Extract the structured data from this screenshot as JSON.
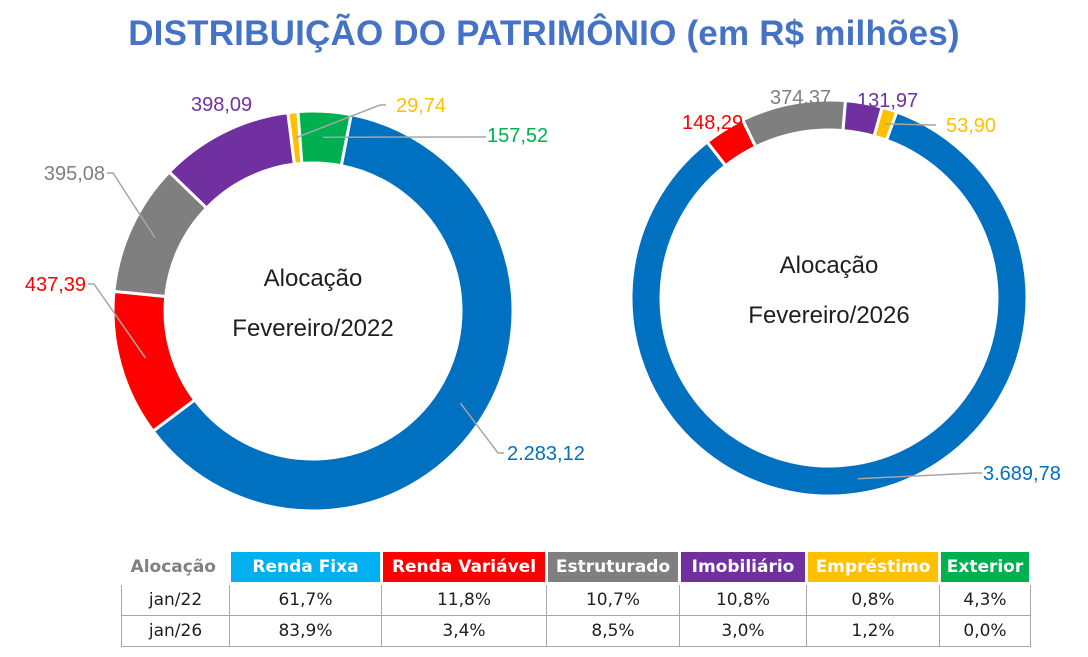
{
  "title": "DISTRIBUIÇÃO DO PATRIMÔNIO (em R$ milhões)",
  "colors": {
    "renda_fixa_donut": "#0070c0",
    "renda_fixa_header": "#00b0f0",
    "renda_variavel": "#ff0000",
    "estruturado": "#7f7f7f",
    "imobiliario": "#7030a0",
    "emprestimo": "#ffc000",
    "exterior": "#00b050",
    "title": "#4472c4"
  },
  "chart_data": [
    {
      "type": "pie",
      "variant": "donut",
      "center_label": [
        "Alocação",
        "Fevereiro/2022"
      ],
      "slices": [
        {
          "category": "Renda Fixa",
          "value": 2283.12,
          "label": "2.283,12"
        },
        {
          "category": "Renda Variável",
          "value": 437.39,
          "label": "437,39"
        },
        {
          "category": "Estruturado",
          "value": 395.08,
          "label": "395,08"
        },
        {
          "category": "Imobiliário",
          "value": 398.09,
          "label": "398,09"
        },
        {
          "category": "Empréstimo",
          "value": 29.74,
          "label": "29,74"
        },
        {
          "category": "Exterior",
          "value": 157.52,
          "label": "157,52"
        }
      ]
    },
    {
      "type": "pie",
      "variant": "donut",
      "center_label": [
        "Alocação",
        "Fevereiro/2026"
      ],
      "slices": [
        {
          "category": "Renda Fixa",
          "value": 3689.78,
          "label": "3.689,78"
        },
        {
          "category": "Renda Variável",
          "value": 148.29,
          "label": "148,29"
        },
        {
          "category": "Estruturado",
          "value": 374.37,
          "label": "374,37"
        },
        {
          "category": "Imobiliário",
          "value": 131.97,
          "label": "131,97"
        },
        {
          "category": "Empréstimo",
          "value": 53.9,
          "label": "53,90"
        },
        {
          "category": "Exterior",
          "value": 0.0,
          "label": ""
        }
      ]
    },
    {
      "type": "table",
      "header_label": "Alocação",
      "columns": [
        "Renda Fixa",
        "Renda Variável",
        "Estruturado",
        "Imobiliário",
        "Empréstimo",
        "Exterior"
      ],
      "rows": [
        {
          "label": "jan/22",
          "values": [
            "61,7%",
            "11,8%",
            "10,7%",
            "10,8%",
            "0,8%",
            "4,3%"
          ]
        },
        {
          "label": "jan/26",
          "values": [
            "83,9%",
            "3,4%",
            "8,5%",
            "3,0%",
            "1,2%",
            "0,0%"
          ]
        }
      ]
    }
  ]
}
